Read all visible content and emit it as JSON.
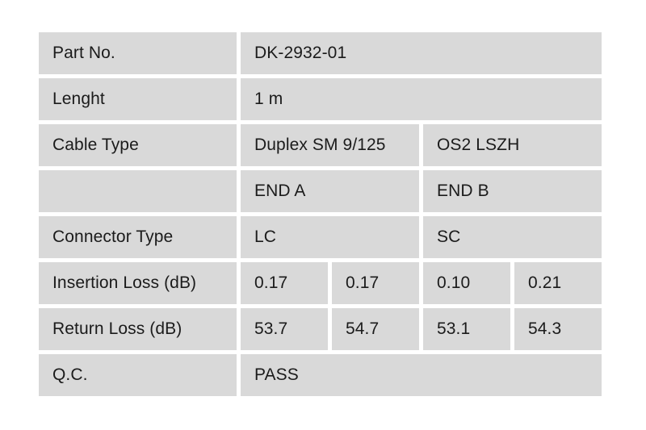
{
  "colors": {
    "cell_bg": "#d9d9d9",
    "page_bg": "#ffffff",
    "text": "#1b1b1b"
  },
  "table": {
    "rows": [
      {
        "label": "Part No.",
        "values": [
          "DK-2932-01"
        ]
      },
      {
        "label": "Lenght",
        "values": [
          "1 m"
        ]
      },
      {
        "label": "Cable Type",
        "values": [
          "Duplex SM 9/125",
          "OS2 LSZH"
        ]
      },
      {
        "label": "",
        "values": [
          "END A",
          "END B"
        ]
      },
      {
        "label": "Connector Type",
        "values": [
          "LC",
          "SC"
        ]
      },
      {
        "label": "Insertion Loss (dB)",
        "values": [
          "0.17",
          "0.17",
          "0.10",
          "0.21"
        ]
      },
      {
        "label": "Return Loss (dB)",
        "values": [
          "53.7",
          "54.7",
          "53.1",
          "54.3"
        ]
      },
      {
        "label": "Q.C.",
        "values": [
          "PASS"
        ]
      }
    ]
  }
}
